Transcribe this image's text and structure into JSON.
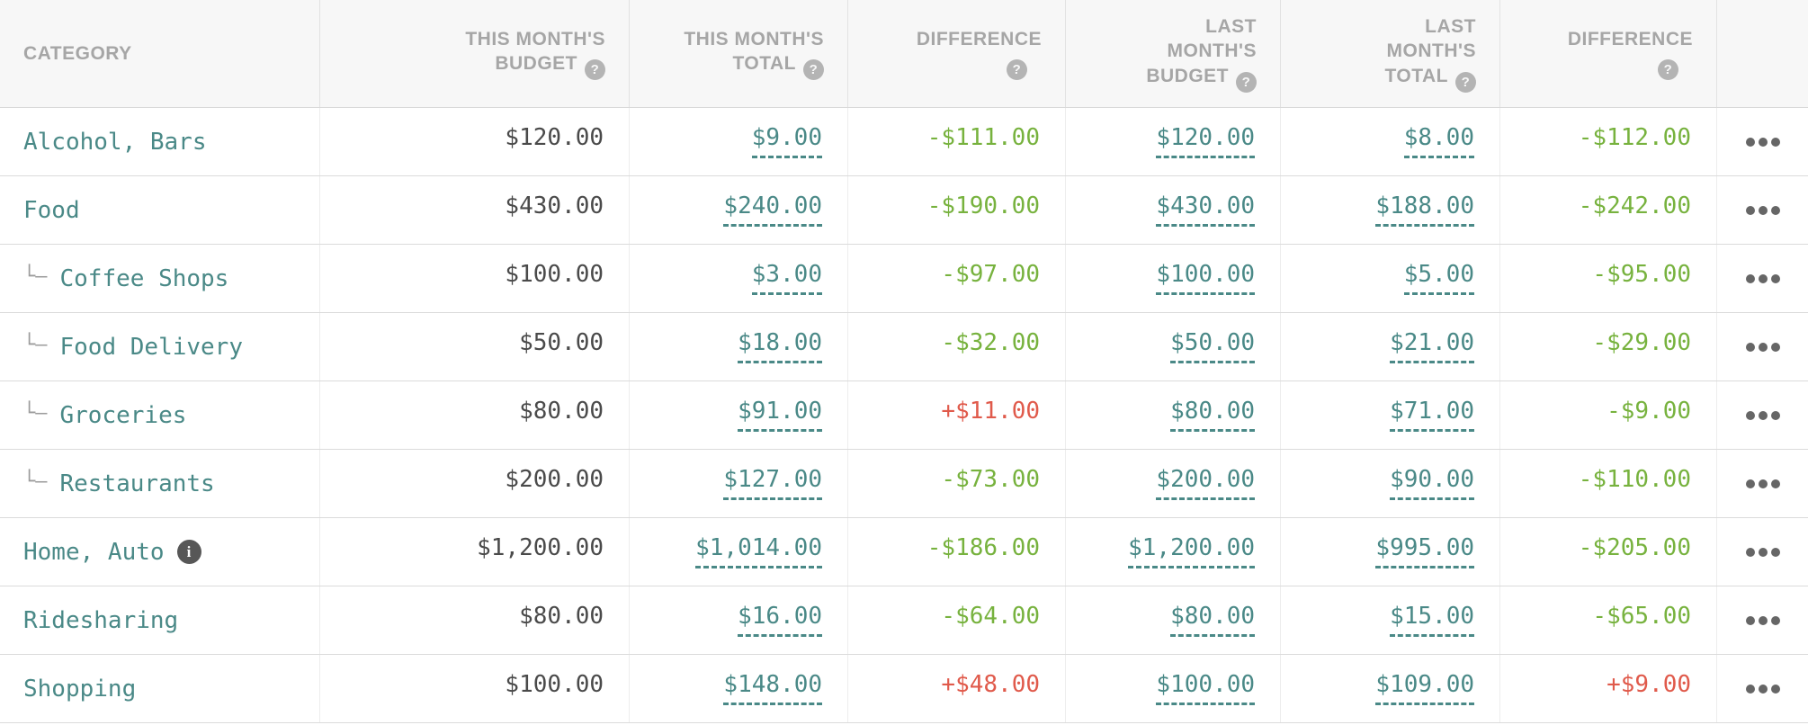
{
  "colors": {
    "teal_link": "#4a8987",
    "under_budget_green": "#77b23e",
    "over_budget_red": "#e05a4b",
    "header_bg": "#f7f7f7",
    "plain_value": "#4a4a4a",
    "header_text": "#a6a6a6"
  },
  "table": {
    "help_icon_glyph": "?",
    "info_icon_glyph": "i",
    "subcategory_prefix": "└–",
    "columns": [
      {
        "id": "category",
        "label": "CATEGORY",
        "help": false,
        "help_below": false
      },
      {
        "id": "this_month_budget",
        "label": "THIS MONTH'S\nBUDGET",
        "help": true,
        "help_below": false
      },
      {
        "id": "this_month_total",
        "label": "THIS MONTH'S\nTOTAL",
        "help": true,
        "help_below": false
      },
      {
        "id": "difference",
        "label": "DIFFERENCE",
        "help": true,
        "help_below": true
      },
      {
        "id": "last_month_budget",
        "label": "LAST\nMONTH'S\nBUDGET",
        "help": true,
        "help_below": false
      },
      {
        "id": "last_month_total",
        "label": "LAST\nMONTH'S\nTOTAL",
        "help": true,
        "help_below": false
      },
      {
        "id": "difference_last",
        "label": "DIFFERENCE",
        "help": true,
        "help_below": true
      },
      {
        "id": "row_menu",
        "label": "",
        "help": false,
        "help_below": false
      }
    ],
    "rows": [
      {
        "category": "Alcohol, Bars",
        "is_subcategory": false,
        "has_info": false,
        "this_month_budget": "$120.00",
        "this_month_total": "$9.00",
        "difference": {
          "value": "-$111.00",
          "state": "under"
        },
        "last_month_budget": "$120.00",
        "last_month_total": "$8.00",
        "difference_last": {
          "value": "-$112.00",
          "state": "under"
        }
      },
      {
        "category": "Food",
        "is_subcategory": false,
        "has_info": false,
        "this_month_budget": "$430.00",
        "this_month_total": "$240.00",
        "difference": {
          "value": "-$190.00",
          "state": "under"
        },
        "last_month_budget": "$430.00",
        "last_month_total": "$188.00",
        "difference_last": {
          "value": "-$242.00",
          "state": "under"
        }
      },
      {
        "category": "Coffee Shops",
        "is_subcategory": true,
        "has_info": false,
        "this_month_budget": "$100.00",
        "this_month_total": "$3.00",
        "difference": {
          "value": "-$97.00",
          "state": "under"
        },
        "last_month_budget": "$100.00",
        "last_month_total": "$5.00",
        "difference_last": {
          "value": "-$95.00",
          "state": "under"
        }
      },
      {
        "category": "Food Delivery",
        "is_subcategory": true,
        "has_info": false,
        "this_month_budget": "$50.00",
        "this_month_total": "$18.00",
        "difference": {
          "value": "-$32.00",
          "state": "under"
        },
        "last_month_budget": "$50.00",
        "last_month_total": "$21.00",
        "difference_last": {
          "value": "-$29.00",
          "state": "under"
        }
      },
      {
        "category": "Groceries",
        "is_subcategory": true,
        "has_info": false,
        "this_month_budget": "$80.00",
        "this_month_total": "$91.00",
        "difference": {
          "value": "+$11.00",
          "state": "over"
        },
        "last_month_budget": "$80.00",
        "last_month_total": "$71.00",
        "difference_last": {
          "value": "-$9.00",
          "state": "under"
        }
      },
      {
        "category": "Restaurants",
        "is_subcategory": true,
        "has_info": false,
        "this_month_budget": "$200.00",
        "this_month_total": "$127.00",
        "difference": {
          "value": "-$73.00",
          "state": "under"
        },
        "last_month_budget": "$200.00",
        "last_month_total": "$90.00",
        "difference_last": {
          "value": "-$110.00",
          "state": "under"
        }
      },
      {
        "category": "Home, Auto",
        "is_subcategory": false,
        "has_info": true,
        "this_month_budget": "$1,200.00",
        "this_month_total": "$1,014.00",
        "difference": {
          "value": "-$186.00",
          "state": "under"
        },
        "last_month_budget": "$1,200.00",
        "last_month_total": "$995.00",
        "difference_last": {
          "value": "-$205.00",
          "state": "under"
        }
      },
      {
        "category": "Ridesharing",
        "is_subcategory": false,
        "has_info": false,
        "this_month_budget": "$80.00",
        "this_month_total": "$16.00",
        "difference": {
          "value": "-$64.00",
          "state": "under"
        },
        "last_month_budget": "$80.00",
        "last_month_total": "$15.00",
        "difference_last": {
          "value": "-$65.00",
          "state": "under"
        }
      },
      {
        "category": "Shopping",
        "is_subcategory": false,
        "has_info": false,
        "this_month_budget": "$100.00",
        "this_month_total": "$148.00",
        "difference": {
          "value": "+$48.00",
          "state": "over"
        },
        "last_month_budget": "$100.00",
        "last_month_total": "$109.00",
        "difference_last": {
          "value": "+$9.00",
          "state": "over"
        }
      }
    ]
  }
}
